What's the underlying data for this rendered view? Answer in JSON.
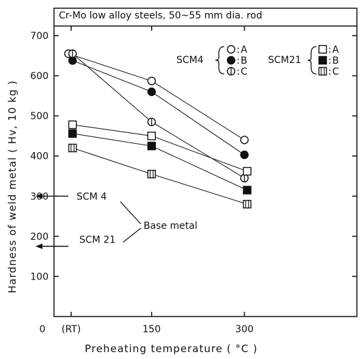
{
  "chart_data": {
    "type": "line",
    "title": "Cr-Mo low alloy steels, 50~55 mm dia. rod",
    "xlabel": "Preheating temperature  ( °C )",
    "ylabel": "Hardness of weld metal  ( Hv, 10 kg )",
    "xlim": [
      0,
      360
    ],
    "ylim": [
      0,
      750
    ],
    "x_ticks": [
      {
        "value": 0,
        "label": "0"
      },
      {
        "value": 20,
        "label": "(RT)"
      },
      {
        "value": 150,
        "label": "150"
      },
      {
        "value": 300,
        "label": "300"
      }
    ],
    "y_ticks": [
      100,
      200,
      300,
      400,
      500,
      600,
      700
    ],
    "grid": false,
    "legend_groups": [
      {
        "label": "SCM4",
        "entries": [
          {
            "marker": "circle-open",
            "label": "A"
          },
          {
            "marker": "circle-filled",
            "label": "B"
          },
          {
            "marker": "circle-cross",
            "label": "C"
          }
        ]
      },
      {
        "label": "SCM21",
        "entries": [
          {
            "marker": "square-open",
            "label": "A"
          },
          {
            "marker": "square-filled",
            "label": "B"
          },
          {
            "marker": "square-cross",
            "label": "C"
          }
        ]
      }
    ],
    "series": [
      {
        "group": "SCM4",
        "marker": "circle-open",
        "name": "A",
        "x": [
          20,
          150,
          300
        ],
        "y": [
          655,
          587,
          440
        ]
      },
      {
        "group": "SCM4",
        "marker": "circle-filled",
        "name": "B",
        "x": [
          20,
          150,
          300
        ],
        "y": [
          638,
          560,
          403
        ]
      },
      {
        "group": "SCM4",
        "marker": "circle-cross",
        "name": "C",
        "x": [
          20,
          150,
          300
        ],
        "y": [
          655,
          485,
          345
        ]
      },
      {
        "group": "SCM21",
        "marker": "square-open",
        "name": "A",
        "x": [
          20,
          150,
          300
        ],
        "y": [
          478,
          450,
          362
        ]
      },
      {
        "group": "SCM21",
        "marker": "square-filled",
        "name": "B",
        "x": [
          20,
          150,
          300
        ],
        "y": [
          456,
          425,
          315
        ]
      },
      {
        "group": "SCM21",
        "marker": "square-cross",
        "name": "C",
        "x": [
          20,
          150,
          300
        ],
        "y": [
          420,
          355,
          280
        ]
      }
    ],
    "base_metal": {
      "label": "Base metal",
      "items": [
        {
          "label": "SCM 4",
          "value": 300
        },
        {
          "label": "SCM 21",
          "value": 175
        }
      ]
    }
  }
}
